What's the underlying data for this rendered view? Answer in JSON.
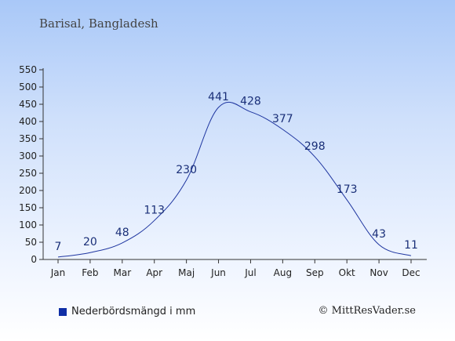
{
  "header": {
    "location": "Barisal, Bangladesh"
  },
  "legend": {
    "label": "Nederbördsmängd i mm",
    "color": "#0f2ea6"
  },
  "credit": {
    "text": "© MittResVader.se"
  },
  "colors": {
    "line": "#1f36a0",
    "label": "#1a2f78",
    "axis": "#333333"
  },
  "chart_data": {
    "type": "line",
    "categories": [
      "Jan",
      "Feb",
      "Mar",
      "Apr",
      "Maj",
      "Jun",
      "Jul",
      "Aug",
      "Sep",
      "Okt",
      "Nov",
      "Dec"
    ],
    "series": [
      {
        "name": "Nederbördsmängd i mm",
        "values": [
          7,
          20,
          48,
          113,
          230,
          441,
          428,
          377,
          298,
          173,
          43,
          11
        ]
      }
    ],
    "ylim": [
      0,
      550
    ],
    "yticks": [
      0,
      50,
      100,
      150,
      200,
      250,
      300,
      350,
      400,
      450,
      500,
      550
    ],
    "grid": false,
    "legend_position": "bottom-left"
  }
}
